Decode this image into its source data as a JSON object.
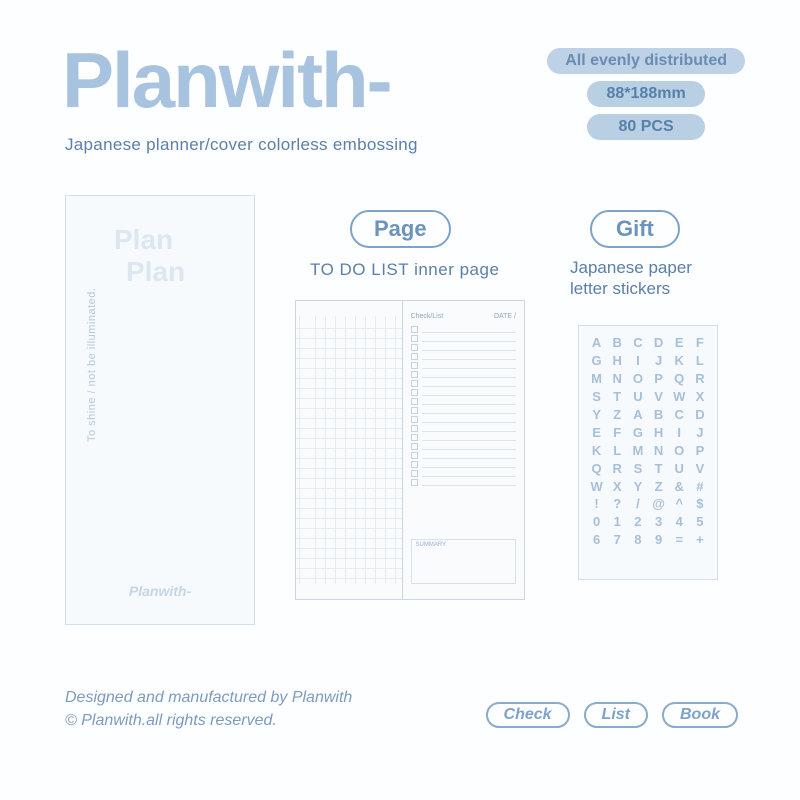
{
  "brand": "Planwith-",
  "subtitle": "Japanese planner/cover colorless embossing",
  "specs": {
    "distribution": "All evenly distributed",
    "dimensions": "88*188mm",
    "quantity": "80 PCS"
  },
  "cover": {
    "line1": "Plan",
    "line2": "Plan",
    "side_text": "To shine / not be illuminated.",
    "brand_small": "Planwith-"
  },
  "page": {
    "badge": "Page",
    "caption": "TO DO LIST inner page",
    "header_left": "Check/List",
    "header_right": "DATE   /",
    "summary_label": "SUMMARY"
  },
  "gift": {
    "badge": "Gift",
    "caption_line1": "Japanese paper",
    "caption_line2": "letter stickers",
    "chars": [
      "A",
      "B",
      "C",
      "D",
      "E",
      "F",
      "G",
      "H",
      "I",
      "J",
      "K",
      "L",
      "M",
      "N",
      "O",
      "P",
      "Q",
      "R",
      "S",
      "T",
      "U",
      "V",
      "W",
      "X",
      "Y",
      "Z",
      "A",
      "B",
      "C",
      "D",
      "E",
      "F",
      "G",
      "H",
      "I",
      "J",
      "K",
      "L",
      "M",
      "N",
      "O",
      "P",
      "Q",
      "R",
      "S",
      "T",
      "U",
      "V",
      "W",
      "X",
      "Y",
      "Z",
      "&",
      "#",
      "!",
      "?",
      "/",
      "@",
      "^",
      "$",
      "0",
      "1",
      "2",
      "3",
      "4",
      "5",
      "6",
      "7",
      "8",
      "9",
      "=",
      "+"
    ]
  },
  "footer": {
    "line1": "Designed and manufactured by Planwith",
    "line2": "© Planwith.all rights reserved.",
    "pills": [
      "Check",
      "List",
      "Book"
    ]
  },
  "colors": {
    "background": "#fdfeff",
    "brand_text": "#a8c3df",
    "body_text": "#5b7fa8",
    "pill_bg": "#b8cfe4",
    "pill_text": "#5780ab",
    "outline": "#7da3c9",
    "sticker_text": "#a6c0da",
    "border": "#d3dfec"
  },
  "typography": {
    "brand_fontsize": 78,
    "brand_weight": 900,
    "subtitle_fontsize": 17,
    "badge_fontsize": 22,
    "pill_fontsize": 16,
    "sticker_fontsize": 13
  }
}
